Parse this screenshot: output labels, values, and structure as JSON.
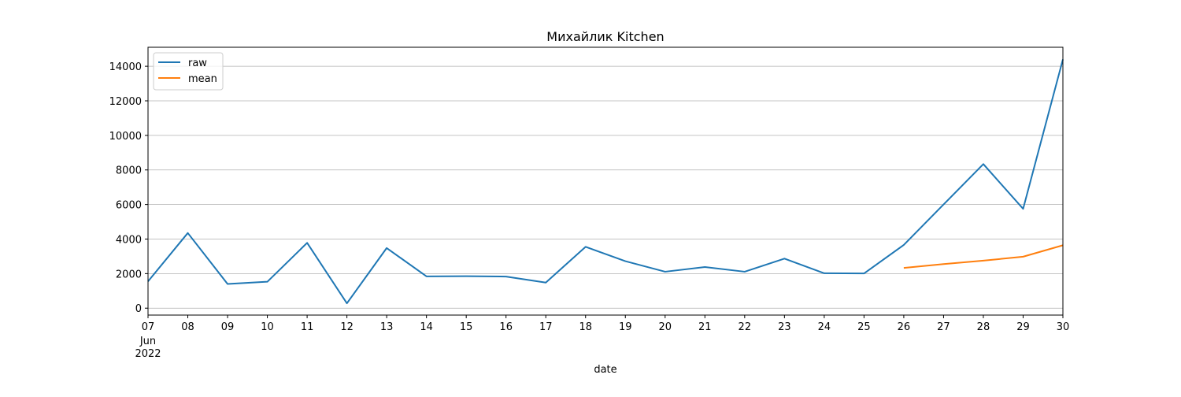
{
  "chart_data": {
    "type": "line",
    "title": "Михайлик Kitchen",
    "xlabel": "date",
    "ylabel": "",
    "x": [
      "2022-06-07",
      "2022-06-08",
      "2022-06-09",
      "2022-06-10",
      "2022-06-11",
      "2022-06-12",
      "2022-06-13",
      "2022-06-14",
      "2022-06-15",
      "2022-06-16",
      "2022-06-17",
      "2022-06-18",
      "2022-06-19",
      "2022-06-20",
      "2022-06-21",
      "2022-06-22",
      "2022-06-23",
      "2022-06-24",
      "2022-06-25",
      "2022-06-26",
      "2022-06-27",
      "2022-06-28",
      "2022-06-29",
      "2022-06-30"
    ],
    "x_tick_labels": [
      "07",
      "08",
      "09",
      "10",
      "11",
      "12",
      "13",
      "14",
      "15",
      "16",
      "17",
      "18",
      "19",
      "20",
      "21",
      "22",
      "23",
      "24",
      "25",
      "26",
      "27",
      "28",
      "29",
      "30"
    ],
    "x_tick_sublabels": [
      "Jun",
      "2022"
    ],
    "ylim": [
      -400,
      15100
    ],
    "y_ticks": [
      0,
      2000,
      4000,
      6000,
      8000,
      10000,
      12000,
      14000
    ],
    "grid": "horizontal",
    "legend_position": "top-left",
    "series": [
      {
        "name": "raw",
        "color": "#1f77b4",
        "values": [
          1550,
          4350,
          1400,
          1530,
          3780,
          280,
          3480,
          1840,
          1850,
          1830,
          1480,
          3550,
          2720,
          2110,
          2380,
          2110,
          2870,
          2020,
          2010,
          3660,
          6000,
          8340,
          5750,
          14400
        ]
      },
      {
        "name": "mean",
        "color": "#ff7f0e",
        "values": [
          null,
          null,
          null,
          null,
          null,
          null,
          null,
          null,
          null,
          null,
          null,
          null,
          null,
          null,
          null,
          null,
          null,
          null,
          null,
          2330,
          2550,
          2750,
          2980,
          3640
        ]
      }
    ]
  }
}
